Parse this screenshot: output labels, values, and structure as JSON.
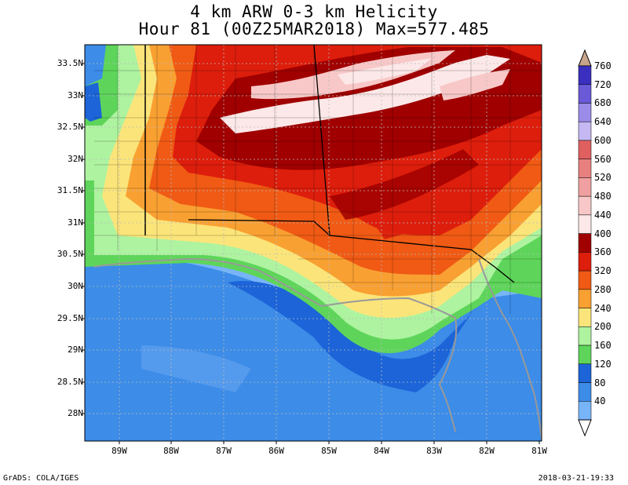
{
  "title": {
    "line1": "4 km ARW 0-3 km Helicity",
    "line2": "Hour 81 (00Z25MAR2018) Max=577.485"
  },
  "map": {
    "lat_labels": [
      "33.5N",
      "33N",
      "32.5N",
      "32N",
      "31.5N",
      "31N",
      "30.5N",
      "30N",
      "29.5N",
      "29N",
      "28.5N",
      "28N"
    ],
    "lon_labels": [
      "89W",
      "88W",
      "87W",
      "86W",
      "85W",
      "84W",
      "83W",
      "82W",
      "81W"
    ]
  },
  "colorbar": {
    "levels": [
      "760",
      "720",
      "680",
      "640",
      "600",
      "560",
      "520",
      "480",
      "440",
      "400",
      "360",
      "320",
      "280",
      "240",
      "200",
      "160",
      "120",
      "80",
      "40"
    ],
    "colors": [
      "#3b2fc0",
      "#6a5ad8",
      "#9a8ce8",
      "#c6b8f2",
      "#e06060",
      "#e88080",
      "#f0a0a0",
      "#f8c8c8",
      "#fce8e8",
      "#a00000",
      "#dd1e0c",
      "#f05a14",
      "#f9a032",
      "#fbe57a",
      "#aef3a0",
      "#5ed55a",
      "#1c64d8",
      "#3c8ce8",
      "#78b4f8"
    ],
    "top_cap_color": "#c8a48c"
  },
  "footer": {
    "left": "GrADS: COLA/IGES",
    "right": "2018-03-21-19:33"
  }
}
